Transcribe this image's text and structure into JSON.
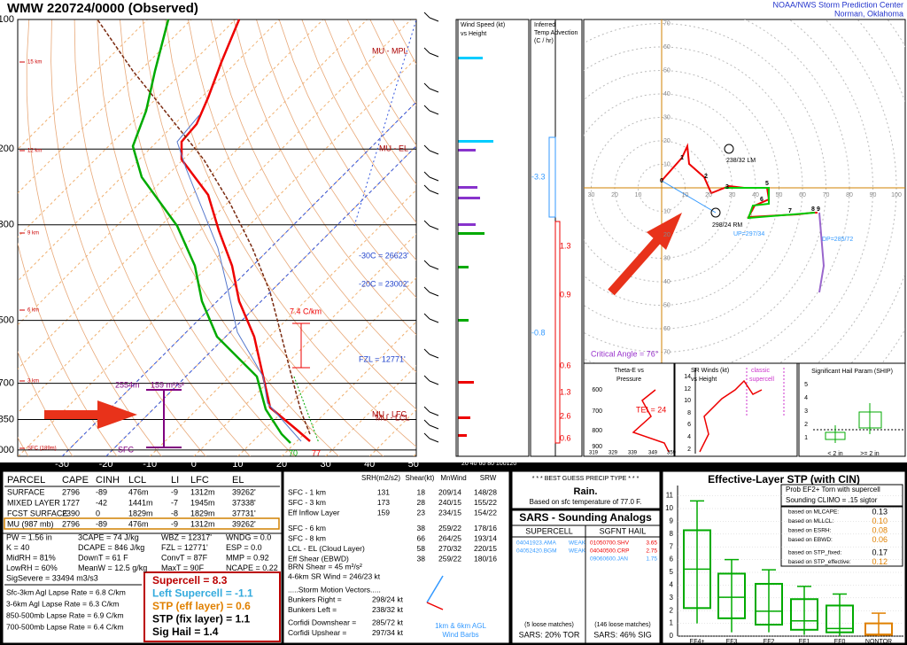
{
  "header": {
    "title": "WMW   220724/0000  (Observed)",
    "org": "NOAA/NWS Storm Prediction Center",
    "location": "Norman, Oklahoma"
  },
  "skewt": {
    "pressures": [
      "100",
      "200",
      "300",
      "500",
      "700",
      "850",
      "1000"
    ],
    "temps": [
      "-30",
      "-20",
      "-10",
      "0",
      "10",
      "20",
      "30",
      "40",
      "50"
    ],
    "heights": [
      "15 km",
      "12 km",
      "9 km",
      "6 km",
      "3 km",
      "SFC (189m)"
    ],
    "labels": {
      "mpl": "MU - MPL",
      "el": "MU - EL",
      "m30": "-30C = 26623'",
      "m20": "-20C = 23002'",
      "lapse": "7.4 C/km",
      "fzl": "FZL = 12771'",
      "lfc": "MU - LFC",
      "lcl": "MU - LCL",
      "dcape_h": "2554m",
      "srh": "159 m²/s²",
      "sfc": "SFC",
      "td": "70",
      "t": "77"
    }
  },
  "wind": {
    "title1": "Wind Speed (kt)",
    "title2": "vs Height",
    "axis": "20 40 60 80 100120"
  },
  "advection": {
    "title": [
      "Inferred",
      "Temp Advection",
      "(C / hr)"
    ],
    "values": [
      "-3.3",
      "1.3",
      "0.9",
      "-0.8",
      "0.6",
      "1.3",
      "2.6",
      "0.6"
    ]
  },
  "hodograph": {
    "xlabels": [
      "30",
      "20",
      "10",
      "10",
      "20",
      "30",
      "40",
      "50",
      "60",
      "70",
      "80",
      "90",
      "100"
    ],
    "ylabels_up": [
      "70",
      "60",
      "50",
      "40",
      "30",
      "20",
      "10"
    ],
    "ylabels_down": [
      "10",
      "20",
      "30",
      "40",
      "50",
      "60",
      "70"
    ],
    "points": [
      "0",
      "1",
      "2",
      "3",
      "5",
      "6",
      "7",
      "8",
      "9"
    ],
    "lm": "238/32 LM",
    "rm": "298/24 RM",
    "up": "UP=297/34",
    "dp": "DP=285/72",
    "crit": "Critical Angle = 76°"
  },
  "thetae": {
    "title1": "Theta-E vs",
    "title2": "Pressure",
    "tei": "TEI = 24",
    "ylabels": [
      "600",
      "700",
      "800",
      "900"
    ],
    "xlabels": [
      "319",
      "329",
      "339",
      "349",
      "359"
    ]
  },
  "srwinds": {
    "title1": "SR Winds (kt)",
    "title2": "vs Height",
    "classic1": "classic",
    "classic2": "supercell",
    "ylabels": [
      "14",
      "12",
      "10",
      "8",
      "6",
      "4",
      "2"
    ]
  },
  "ship": {
    "title": "Significant Hail Param (SHIP)",
    "ylabels": [
      "5",
      "4",
      "3",
      "2",
      "1"
    ],
    "xlabels": [
      "< 2 in",
      ">= 2 in"
    ]
  },
  "parcel": {
    "headers": [
      "PARCEL",
      "CAPE",
      "CINH",
      "LCL",
      "LI",
      "LFC",
      "EL"
    ],
    "rows": [
      [
        "SURFACE",
        "2796",
        "-89",
        "476m",
        "-9",
        "1312m",
        "39262'"
      ],
      [
        "MIXED LAYER",
        "1727",
        "-42",
        "1441m",
        "-7",
        "1945m",
        "37338'"
      ],
      [
        "FCST SURFACE",
        "2390",
        "0",
        "1829m",
        "-8",
        "1829m",
        "37731'"
      ],
      [
        "MU  (987 mb)",
        "2796",
        "-89",
        "476m",
        "-9",
        "1312m",
        "39262'"
      ]
    ],
    "indices": [
      [
        "PW = 1.56 in",
        "3CAPE = 74 J/kg",
        "WBZ = 12317'",
        "WNDG = 0.0"
      ],
      [
        "K = 40",
        "DCAPE = 846 J/kg",
        "FZL = 12771'",
        "ESP = 0.0"
      ],
      [
        "MidRH = 81%",
        "DownT = 61 F",
        "ConvT = 87F",
        "MMP = 0.92"
      ],
      [
        "LowRH = 60%",
        "MeanW = 12.5 g/kg",
        "MaxT = 90F",
        "NCAPE = 0.22"
      ]
    ],
    "sigsevere": "SigSevere = 33494 m3/s3",
    "lapse": [
      "Sfc-3km Agl Lapse Rate = 6.8 C/km",
      "3-6km Agl Lapse Rate = 6.3 C/km",
      "850-500mb Lapse Rate = 6.9 C/km",
      "700-500mb Lapse Rate = 6.4 C/km"
    ],
    "composite": [
      "Supercell = 8.3",
      "Left Supercell = -1.1",
      "STP (eff layer) = 0.6",
      "STP (fix layer) = 1.1",
      "Sig Hail = 1.4"
    ]
  },
  "kinematics": {
    "headers": [
      "SRH(m2/s2)",
      "Shear(kt)",
      "MnWind",
      "SRW"
    ],
    "rows": [
      [
        "SFC - 1 km",
        "131",
        "18",
        "209/14",
        "148/28"
      ],
      [
        "SFC - 3 km",
        "173",
        "28",
        "240/15",
        "155/22"
      ],
      [
        "Eff Inflow Layer",
        "159",
        "23",
        "234/15",
        "154/22"
      ],
      [
        "SFC - 6 km",
        "",
        "38",
        "259/22",
        "178/16"
      ],
      [
        "SFC - 8 km",
        "",
        "66",
        "264/25",
        "193/14"
      ],
      [
        "LCL - EL (Cloud Layer)",
        "",
        "58",
        "270/32",
        "220/15"
      ],
      [
        "Eff Shear (EBWD)",
        "",
        "38",
        "259/22",
        "180/16"
      ]
    ],
    "brn": "BRN Shear = 45 m²/s²",
    "sr46": "4-6km SR Wind =       246/23 kt",
    "motion": ".....Storm Motion Vectors.....",
    "vectors": [
      "Bunkers Right =",
      "Bunkers Left =",
      "Corfidi Downshear =",
      "Corfidi Upshear ="
    ],
    "vector_values": [
      "298/24 kt",
      "238/32 kt",
      "285/72 kt",
      "297/34 kt"
    ],
    "barbs1": "1km & 6km AGL",
    "barbs2": "Wind Barbs"
  },
  "precip": {
    "title": "* * * BEST GUESS PRECIP TYPE * * *",
    "type": "Rain.",
    "basis": "Based on sfc temperature of 77.0 F."
  },
  "sars": {
    "title": "SARS - Sounding Analogs",
    "supercell": "SUPERCELL",
    "hail": "SGFNT HAIL",
    "supercell_matches": [
      [
        "04041923.AMA",
        "WEAK"
      ],
      [
        "04052420.BGM",
        "WEAK"
      ]
    ],
    "hail_matches": [
      [
        "01050700.SHV",
        "3.65"
      ],
      [
        "04040500.CRP",
        "2.75"
      ],
      [
        "09060600.JAN",
        "1.75"
      ]
    ],
    "supercell_loose": "(5 loose matches)",
    "hail_loose": "(146 loose matches)",
    "supercell_sars": "SARS:  20% TOR",
    "hail_sars": "SARS:  46% SIG"
  },
  "stp": {
    "title": "Effective-Layer STP (with CIN)",
    "prob1": "Prob EF2+ Torn with supercell",
    "prob2": "Sounding CLIMO = .15 sigtor",
    "based": [
      [
        "based on MLCAPE:",
        "0.13"
      ],
      [
        "based on MLLCL:",
        "0.10"
      ],
      [
        "based on ESRH:",
        "0.08"
      ],
      [
        "based on EBWD:",
        "0.06"
      ],
      [
        "based on STP_fixed:",
        "0.17"
      ],
      [
        "based on STP_effective:",
        "0.12"
      ]
    ],
    "yticks": [
      "0",
      "1",
      "2",
      "3",
      "4",
      "5",
      "6",
      "7",
      "8",
      "9",
      "10",
      "11"
    ],
    "xlabels": [
      "EF4+",
      "EF3",
      "EF2",
      "EF1",
      "EF0",
      "NONTOR"
    ]
  }
}
